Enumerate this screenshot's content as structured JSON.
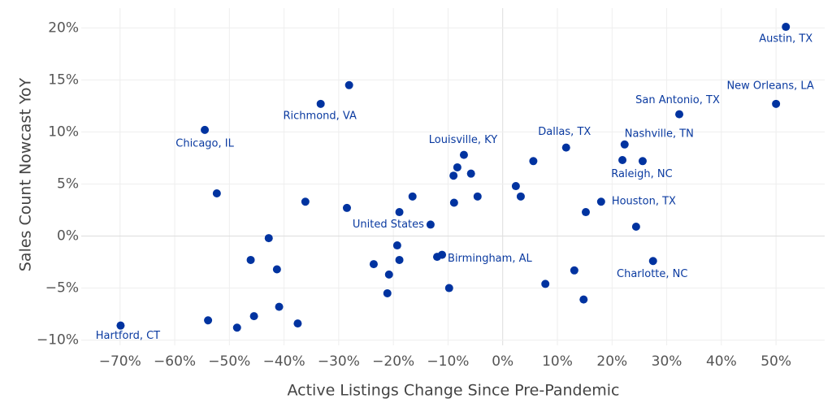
{
  "chart_data": {
    "type": "scatter",
    "x_label": "Active Listings Change Since Pre-Pandemic",
    "y_label": "Sales Count Nowcast YoY",
    "color": "#0033a0",
    "grid": true,
    "xlim": [
      -77.1,
      58.9
    ],
    "ylim": [
      -10.5,
      21.9
    ],
    "xticks": [
      {
        "value": -70,
        "label": "−70%"
      },
      {
        "value": -60,
        "label": "−60%"
      },
      {
        "value": -50,
        "label": "−50%"
      },
      {
        "value": -40,
        "label": "−40%"
      },
      {
        "value": -30,
        "label": "−30%"
      },
      {
        "value": -20,
        "label": "−20%"
      },
      {
        "value": -10,
        "label": "−10%"
      },
      {
        "value": 0,
        "label": "0%"
      },
      {
        "value": 10,
        "label": "10%"
      },
      {
        "value": 20,
        "label": "20%"
      },
      {
        "value": 30,
        "label": "30%"
      },
      {
        "value": 40,
        "label": "40%"
      },
      {
        "value": 50,
        "label": "50%"
      }
    ],
    "yticks": [
      {
        "value": 20,
        "label": "20%"
      },
      {
        "value": 15,
        "label": "15%"
      },
      {
        "value": 10,
        "label": "10%"
      },
      {
        "value": 5,
        "label": "5%"
      },
      {
        "value": 0,
        "label": "0%"
      },
      {
        "value": -5,
        "label": "−5%"
      },
      {
        "value": -10,
        "label": "−10%"
      }
    ],
    "x": [
      51.8,
      50.0,
      32.3,
      22.3,
      11.6,
      21.9,
      25.6,
      5.6,
      2.4,
      3.3,
      18.0,
      15.2,
      24.4,
      27.5,
      13.1,
      7.8,
      14.8,
      -7.1,
      -8.3,
      -5.8,
      -9.0,
      -4.6,
      -8.9,
      -16.5,
      -18.9,
      -13.2,
      -19.3,
      -18.9,
      -23.6,
      -11.1,
      -12.0,
      -20.8,
      -21.1,
      -9.8,
      -33.3,
      -28.1,
      -54.5,
      -52.3,
      -36.1,
      -28.5,
      -42.8,
      -46.1,
      -41.3,
      -69.9,
      -53.9,
      -48.6,
      -45.5,
      -40.9,
      -37.5
    ],
    "y": [
      20.1,
      12.7,
      11.7,
      8.8,
      8.5,
      7.3,
      7.2,
      7.2,
      4.8,
      3.8,
      3.3,
      2.3,
      0.9,
      -2.4,
      -3.3,
      -4.6,
      -6.1,
      7.8,
      6.6,
      6.0,
      5.8,
      3.8,
      3.2,
      3.8,
      2.3,
      1.1,
      -0.9,
      -2.3,
      -2.7,
      -1.8,
      -2.0,
      -3.7,
      -5.5,
      -5.0,
      12.7,
      14.5,
      10.2,
      4.1,
      3.3,
      2.7,
      -0.2,
      -2.3,
      -3.2,
      -8.6,
      -8.1,
      -8.8,
      -7.7,
      -6.8,
      -8.4
    ],
    "labels": [
      "Austin, TX",
      "New Orleans, LA",
      "San Antonio, TX",
      "Nashville, TN",
      "Dallas, TX",
      null,
      "Raleigh, NC",
      null,
      null,
      null,
      "Houston, TX",
      null,
      null,
      "Charlotte, NC",
      null,
      null,
      null,
      "Louisville, KY",
      null,
      null,
      null,
      null,
      null,
      null,
      null,
      "United States",
      null,
      null,
      null,
      "Birmingham, AL",
      null,
      null,
      null,
      null,
      "Richmond, VA",
      null,
      "Chicago, IL",
      null,
      null,
      null,
      null,
      null,
      null,
      "Hartford, CT",
      null,
      null,
      null,
      null,
      null
    ]
  }
}
